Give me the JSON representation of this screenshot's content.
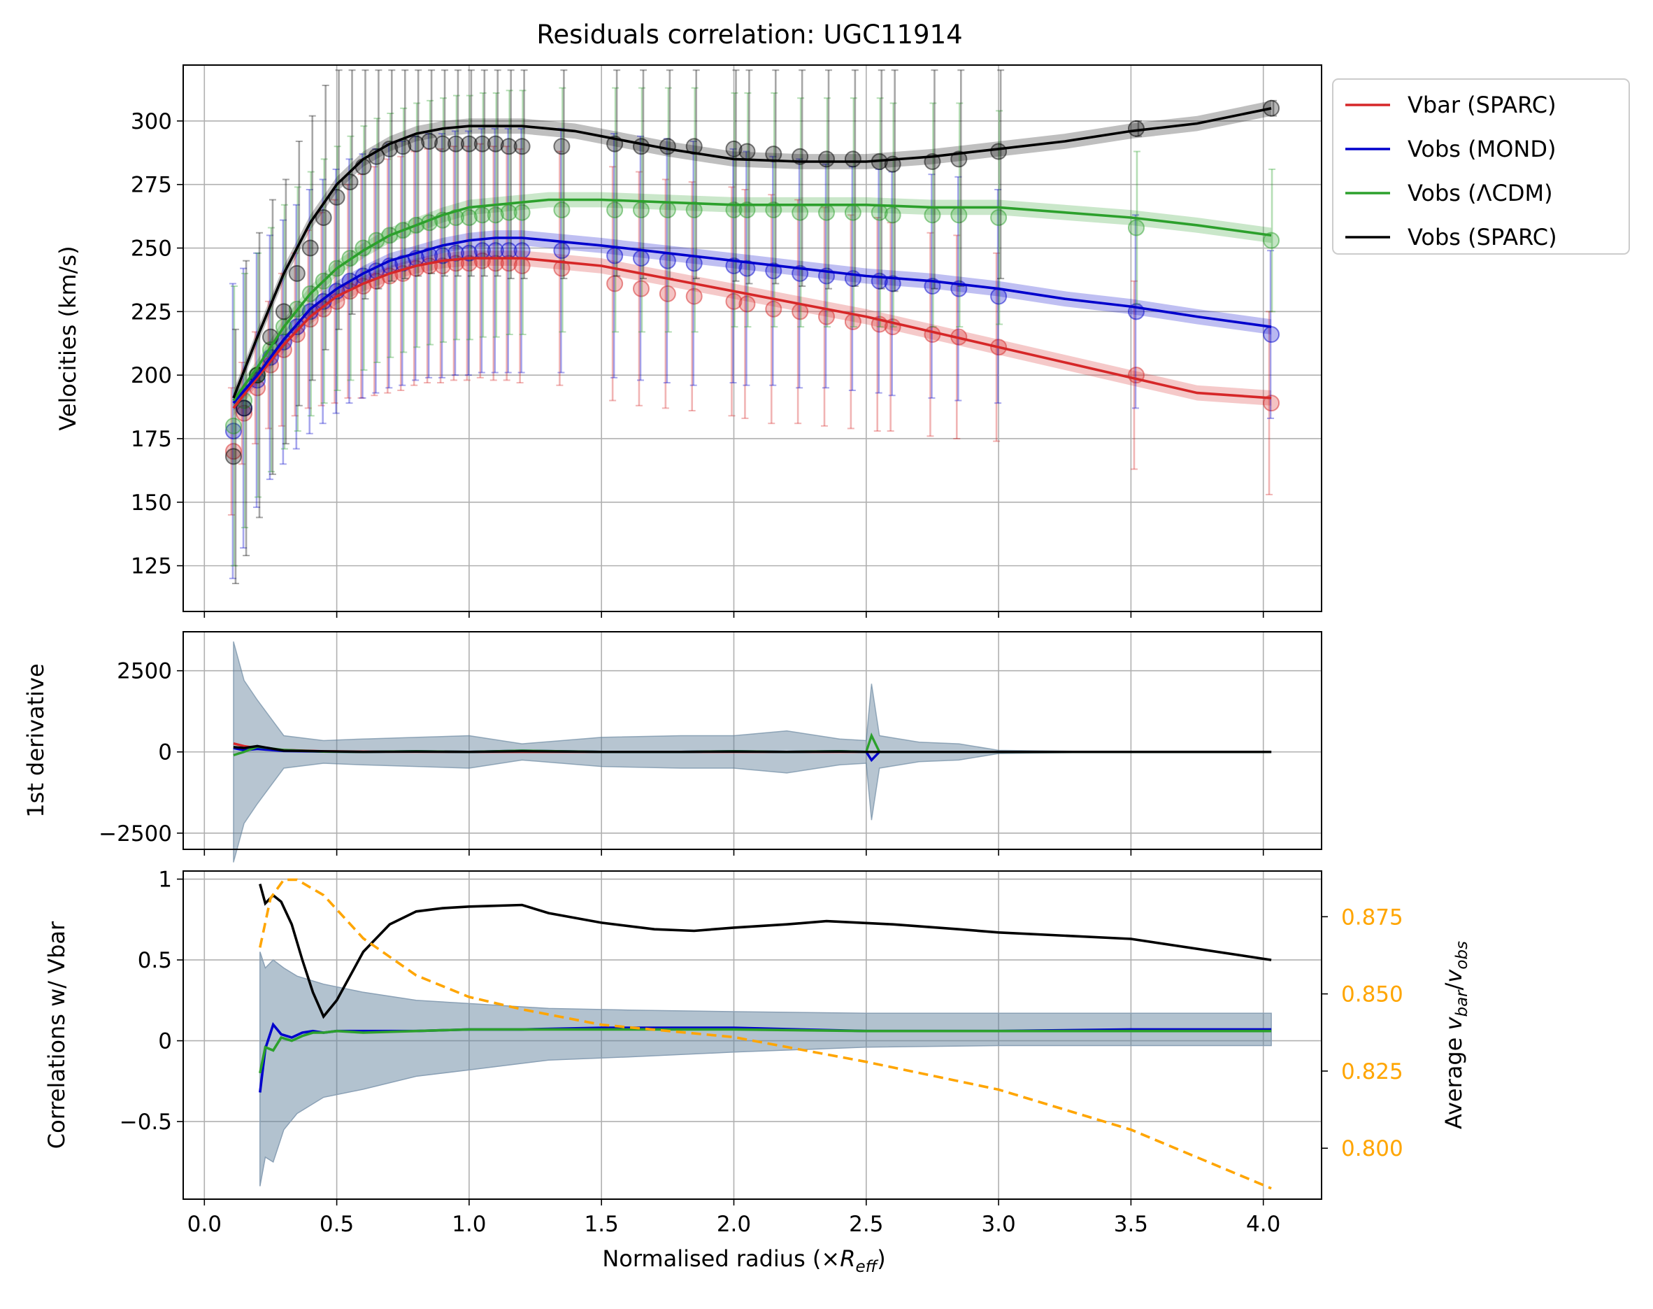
{
  "chart_data": [
    {
      "panel": "velocities",
      "type": "line",
      "title": "Residuals correlation: UGC11914",
      "xlabel": "",
      "ylabel": "Velocities (km/s)",
      "xlim": [
        -0.08,
        4.22
      ],
      "ylim": [
        107,
        322
      ],
      "yticks": [
        125,
        150,
        175,
        200,
        225,
        250,
        275,
        300
      ],
      "grid": true,
      "legend_position": "outside top-right",
      "legend": [
        "Vbar (SPARC)",
        "Vobs (MOND)",
        "Vobs (ΛCDM)",
        "Vobs (SPARC)"
      ],
      "colors": {
        "vbar": "#d62728",
        "mond": "#0000cc",
        "lcdm": "#2ca02c",
        "sparc": "#000000"
      },
      "x": [
        0.11,
        0.15,
        0.2,
        0.25,
        0.3,
        0.35,
        0.4,
        0.45,
        0.5,
        0.55,
        0.6,
        0.65,
        0.7,
        0.75,
        0.8,
        0.85,
        0.9,
        0.95,
        1.0,
        1.05,
        1.1,
        1.15,
        1.2,
        1.35,
        1.55,
        1.65,
        1.75,
        1.85,
        2.0,
        2.05,
        2.15,
        2.25,
        2.35,
        2.45,
        2.55,
        2.6,
        2.75,
        2.85,
        3.0,
        3.52,
        4.03
      ],
      "series": [
        {
          "name": "Vbar (SPARC)",
          "values": [
            170,
            185,
            195,
            204,
            210,
            216,
            222,
            226,
            229,
            233,
            235,
            237,
            239,
            240,
            242,
            243,
            243,
            244,
            244,
            245,
            244,
            244,
            243,
            242,
            236,
            234,
            232,
            231,
            229,
            228,
            226,
            225,
            223,
            221,
            220,
            219,
            216,
            215,
            211,
            200,
            189
          ],
          "err": [
            25,
            20,
            22,
            25,
            30,
            32,
            35,
            38,
            40,
            42,
            44,
            45,
            46,
            46,
            46,
            46,
            46,
            46,
            46,
            46,
            46,
            46,
            46,
            46,
            46,
            46,
            45,
            45,
            45,
            45,
            45,
            44,
            43,
            42,
            42,
            41,
            40,
            40,
            37,
            37,
            36
          ]
        },
        {
          "name": "Vobs (MOND)",
          "values": [
            178,
            187,
            198,
            207,
            213,
            219,
            225,
            229,
            233,
            237,
            239,
            241,
            243,
            244,
            246,
            247,
            247,
            248,
            248,
            249,
            249,
            249,
            249,
            249,
            247,
            246,
            245,
            244,
            243,
            242,
            241,
            240,
            239,
            238,
            237,
            236,
            235,
            234,
            231,
            225,
            216
          ],
          "err": [
            58,
            55,
            50,
            48,
            48,
            48,
            48,
            48,
            48,
            48,
            48,
            48,
            48,
            48,
            48,
            48,
            48,
            48,
            48,
            48,
            48,
            48,
            48,
            48,
            48,
            48,
            48,
            48,
            46,
            46,
            45,
            45,
            44,
            44,
            44,
            44,
            44,
            44,
            42,
            38,
            33
          ]
        },
        {
          "name": "Vobs (ΛCDM)",
          "values": [
            180,
            190,
            200,
            210,
            219,
            226,
            232,
            237,
            242,
            246,
            250,
            253,
            255,
            257,
            259,
            260,
            261,
            262,
            262,
            263,
            263,
            264,
            264,
            265,
            265,
            265,
            265,
            265,
            265,
            265,
            265,
            264,
            264,
            264,
            264,
            263,
            263,
            263,
            262,
            258,
            253
          ],
          "err": [
            55,
            50,
            48,
            48,
            48,
            48,
            48,
            48,
            48,
            48,
            48,
            48,
            48,
            48,
            48,
            48,
            48,
            48,
            48,
            48,
            48,
            48,
            48,
            48,
            48,
            48,
            48,
            48,
            46,
            46,
            46,
            45,
            45,
            45,
            45,
            44,
            44,
            44,
            42,
            30,
            28
          ]
        },
        {
          "name": "Vobs (SPARC)",
          "values": [
            168,
            187,
            200,
            215,
            225,
            240,
            250,
            262,
            270,
            276,
            282,
            286,
            289,
            290,
            291,
            292,
            291,
            291,
            291,
            291,
            291,
            290,
            290,
            290,
            291,
            290,
            290,
            290,
            289,
            288,
            287,
            286,
            285,
            285,
            284,
            283,
            284,
            285,
            288,
            297,
            305
          ],
          "err": [
            50,
            58,
            56,
            54,
            52,
            52,
            52,
            52,
            52,
            52,
            52,
            52,
            52,
            52,
            52,
            52,
            52,
            52,
            52,
            52,
            52,
            52,
            52,
            52,
            52,
            52,
            52,
            52,
            52,
            52,
            51,
            51,
            51,
            50,
            50,
            50,
            50,
            50,
            50,
            3,
            3
          ]
        }
      ],
      "fits": [
        {
          "name": "Vbar (SPARC)",
          "x": [
            0.11,
            0.2,
            0.3,
            0.4,
            0.5,
            0.6,
            0.7,
            0.8,
            0.9,
            1.0,
            1.1,
            1.2,
            1.3,
            1.4,
            1.5,
            1.75,
            2.0,
            2.25,
            2.5,
            2.75,
            3.0,
            3.25,
            3.5,
            3.75,
            4.03
          ],
          "y": [
            187,
            199,
            212,
            223,
            231,
            236,
            240,
            243,
            245,
            246,
            246,
            246,
            245,
            244,
            243,
            238,
            233,
            228,
            223,
            217,
            211,
            205,
            199,
            193,
            191
          ]
        },
        {
          "name": "Vobs (MOND)",
          "x": [
            0.11,
            0.2,
            0.3,
            0.4,
            0.5,
            0.6,
            0.7,
            0.8,
            0.9,
            1.0,
            1.1,
            1.2,
            1.3,
            1.4,
            1.5,
            1.75,
            2.0,
            2.25,
            2.5,
            2.75,
            3.0,
            3.25,
            3.5,
            3.75,
            4.03
          ],
          "y": [
            189,
            200,
            214,
            226,
            234,
            240,
            245,
            248,
            251,
            253,
            254,
            254,
            253,
            252,
            251,
            248,
            245,
            242,
            239,
            237,
            234,
            230,
            227,
            223,
            219
          ]
        },
        {
          "name": "Vobs (ΛCDM)",
          "x": [
            0.11,
            0.2,
            0.3,
            0.4,
            0.5,
            0.6,
            0.7,
            0.8,
            0.9,
            1.0,
            1.1,
            1.2,
            1.3,
            1.4,
            1.5,
            1.75,
            2.0,
            2.25,
            2.5,
            2.75,
            3.0,
            3.25,
            3.5,
            3.75,
            4.03
          ],
          "y": [
            190,
            203,
            219,
            232,
            242,
            249,
            255,
            259,
            263,
            266,
            267,
            268,
            269,
            269,
            269,
            268,
            267,
            267,
            267,
            266,
            266,
            264,
            262,
            259,
            255
          ]
        },
        {
          "name": "Vobs (SPARC)",
          "x": [
            0.11,
            0.2,
            0.3,
            0.4,
            0.5,
            0.6,
            0.7,
            0.8,
            0.9,
            1.0,
            1.1,
            1.2,
            1.3,
            1.4,
            1.5,
            1.75,
            2.0,
            2.25,
            2.5,
            2.75,
            3.0,
            3.25,
            3.5,
            3.75,
            4.03
          ],
          "y": [
            191,
            215,
            240,
            260,
            275,
            285,
            291,
            295,
            297,
            298,
            298,
            298,
            297,
            296,
            294,
            289,
            285,
            284,
            284,
            286,
            289,
            292,
            296,
            299,
            305
          ]
        }
      ]
    },
    {
      "panel": "derivative",
      "type": "line",
      "ylabel": "1st derivative",
      "xlim": [
        -0.08,
        4.22
      ],
      "ylim": [
        -3000,
        3700
      ],
      "yticks": [
        -2500,
        0,
        2500
      ],
      "grid": true,
      "x": [
        0.11,
        0.15,
        0.2,
        0.3,
        0.45,
        0.6,
        0.8,
        1.0,
        1.2,
        1.5,
        1.8,
        2.0,
        2.2,
        2.4,
        2.5,
        2.52,
        2.55,
        2.7,
        2.85,
        3.0,
        3.5,
        4.03
      ],
      "series": [
        {
          "name": "Vbar (SPARC)",
          "values": [
            260,
            180,
            110,
            60,
            20,
            10,
            5,
            0,
            0,
            0,
            0,
            0,
            0,
            0,
            0,
            0,
            0,
            0,
            0,
            0,
            0,
            0
          ]
        },
        {
          "name": "Vobs (MOND)",
          "values": [
            120,
            50,
            90,
            30,
            10,
            0,
            20,
            0,
            40,
            0,
            0,
            20,
            0,
            20,
            0,
            -250,
            0,
            0,
            0,
            0,
            0,
            0
          ]
        },
        {
          "name": "Vobs (ΛCDM)",
          "values": [
            -100,
            0,
            160,
            60,
            10,
            0,
            20,
            0,
            40,
            0,
            0,
            20,
            0,
            20,
            0,
            500,
            0,
            0,
            0,
            0,
            0,
            0
          ]
        },
        {
          "name": "Vobs (SPARC)",
          "values": [
            150,
            120,
            180,
            40,
            20,
            0,
            10,
            0,
            20,
            0,
            0,
            10,
            0,
            10,
            0,
            0,
            0,
            0,
            0,
            0,
            0,
            0
          ]
        }
      ],
      "uncertainty_band_halfwidth": [
        3400,
        2200,
        1600,
        500,
        350,
        400,
        450,
        500,
        250,
        450,
        500,
        500,
        650,
        400,
        350,
        2100,
        500,
        300,
        250,
        50,
        0,
        0
      ]
    },
    {
      "panel": "correlations",
      "type": "line",
      "xlabel": "Normalised radius (×R_eff)",
      "ylabel": "Correlations w/ Vbar",
      "ylabel_right": "Average v_bar/v_obs",
      "xlim": [
        -0.08,
        4.22
      ],
      "xticks": [
        0.0,
        0.5,
        1.0,
        1.5,
        2.0,
        2.5,
        3.0,
        3.5,
        4.0
      ],
      "xtick_labels": [
        "0.0",
        "0.5",
        "1.0",
        "1.5",
        "2.0",
        "2.5",
        "3.0",
        "3.5",
        "4.0"
      ],
      "ylim": [
        -0.98,
        1.05
      ],
      "yticks": [
        -0.5,
        0.0,
        0.5,
        1.0
      ],
      "ylim_right": [
        0.7835,
        0.8898
      ],
      "yticks_right": [
        0.8,
        0.825,
        0.85,
        0.875
      ],
      "right_axis_color": "#ffa500",
      "grid": true,
      "series": [
        {
          "name": "Vobs (SPARC)",
          "x": [
            0.21,
            0.23,
            0.26,
            0.29,
            0.33,
            0.37,
            0.41,
            0.45,
            0.5,
            0.6,
            0.7,
            0.8,
            0.9,
            1.0,
            1.2,
            1.3,
            1.5,
            1.7,
            1.85,
            2.0,
            2.2,
            2.35,
            2.6,
            2.85,
            3.0,
            3.5,
            4.03
          ],
          "values": [
            0.97,
            0.85,
            0.9,
            0.86,
            0.72,
            0.5,
            0.3,
            0.15,
            0.25,
            0.55,
            0.72,
            0.8,
            0.82,
            0.83,
            0.84,
            0.79,
            0.73,
            0.69,
            0.68,
            0.7,
            0.72,
            0.74,
            0.72,
            0.69,
            0.67,
            0.63,
            0.5
          ]
        },
        {
          "name": "Vobs (MOND)",
          "x": [
            0.21,
            0.23,
            0.26,
            0.29,
            0.33,
            0.37,
            0.41,
            0.45,
            0.5,
            0.6,
            0.8,
            1.0,
            1.2,
            1.5,
            2.0,
            2.5,
            3.0,
            3.5,
            4.03
          ],
          "values": [
            -0.32,
            -0.05,
            0.1,
            0.04,
            0.02,
            0.05,
            0.06,
            0.05,
            0.06,
            0.06,
            0.06,
            0.07,
            0.07,
            0.08,
            0.08,
            0.06,
            0.06,
            0.07,
            0.07
          ]
        },
        {
          "name": "Vobs (ΛCDM)",
          "x": [
            0.21,
            0.23,
            0.26,
            0.29,
            0.33,
            0.37,
            0.41,
            0.45,
            0.5,
            0.6,
            0.8,
            1.0,
            1.2,
            1.5,
            2.0,
            2.5,
            3.0,
            3.5,
            4.03
          ],
          "values": [
            -0.2,
            -0.04,
            -0.06,
            0.02,
            0.0,
            0.03,
            0.05,
            0.05,
            0.06,
            0.05,
            0.06,
            0.07,
            0.07,
            0.07,
            0.07,
            0.06,
            0.06,
            0.06,
            0.06
          ]
        },
        {
          "name": "Average v_bar/v_obs",
          "axis": "right",
          "style": "dashed",
          "x": [
            0.21,
            0.25,
            0.3,
            0.35,
            0.45,
            0.6,
            0.8,
            1.0,
            1.2,
            1.5,
            2.0,
            2.5,
            3.0,
            3.5,
            4.03
          ],
          "values": [
            0.865,
            0.881,
            0.887,
            0.887,
            0.882,
            0.868,
            0.856,
            0.849,
            0.845,
            0.84,
            0.836,
            0.828,
            0.819,
            0.806,
            0.787
          ]
        }
      ],
      "uncertainty_band": {
        "x": [
          0.21,
          0.23,
          0.26,
          0.3,
          0.35,
          0.45,
          0.6,
          0.8,
          1.0,
          1.3,
          1.6,
          2.0,
          2.5,
          3.0,
          3.5,
          4.03
        ],
        "upper": [
          0.55,
          0.45,
          0.5,
          0.45,
          0.4,
          0.35,
          0.3,
          0.25,
          0.23,
          0.2,
          0.19,
          0.18,
          0.17,
          0.17,
          0.17,
          0.17
        ],
        "lower": [
          -0.9,
          -0.72,
          -0.75,
          -0.55,
          -0.45,
          -0.35,
          -0.3,
          -0.22,
          -0.18,
          -0.12,
          -0.1,
          -0.07,
          -0.04,
          -0.03,
          -0.03,
          -0.03
        ]
      }
    }
  ]
}
